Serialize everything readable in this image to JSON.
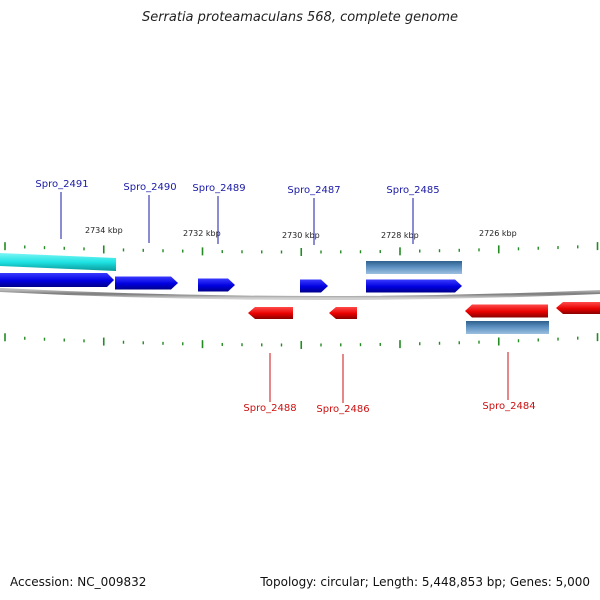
{
  "title": "Serratia proteamaculans 568, complete genome",
  "accession_text": "Accession: NC_009832",
  "summary_text": "Topology: circular; Length: 5,448,853 bp; Genes: 5,000",
  "colors": {
    "forward_gene": "#0000e6",
    "reverse_gene": "#e60000",
    "forward_label": "#1a1aa6",
    "reverse_label": "#cc1111",
    "highlight_cyan": "#19e6e6",
    "steel_blue": "#4f82b4",
    "tick": "#228b22",
    "backbone": "#888888"
  },
  "chart_data": {
    "type": "genome-map",
    "kbp_ticks": [
      {
        "value": 2734,
        "label": "2734 kbp"
      },
      {
        "value": 2732,
        "label": "2732 kbp"
      },
      {
        "value": 2730,
        "label": "2730 kbp"
      },
      {
        "value": 2728,
        "label": "2728 kbp"
      },
      {
        "value": 2726,
        "label": "2726 kbp"
      }
    ],
    "forward_genes": [
      {
        "name": "Spro_2491"
      },
      {
        "name": "Spro_2490"
      },
      {
        "name": "Spro_2489"
      },
      {
        "name": "Spro_2487"
      },
      {
        "name": "Spro_2485"
      }
    ],
    "reverse_genes": [
      {
        "name": "Spro_2488"
      },
      {
        "name": "Spro_2486"
      },
      {
        "name": "Spro_2484"
      }
    ]
  }
}
